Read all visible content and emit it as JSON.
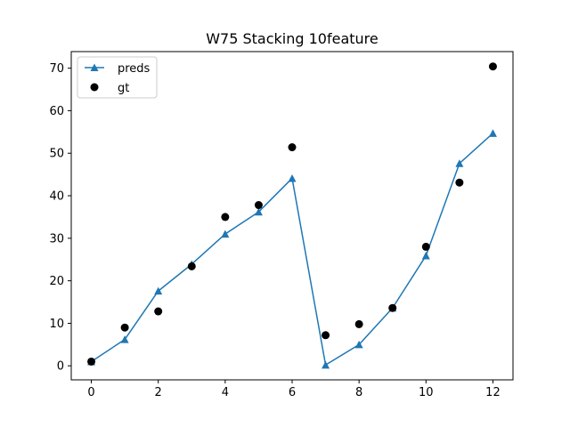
{
  "chart_data": {
    "type": "line",
    "title": "W75 Stacking 10feature",
    "xlabel": "",
    "ylabel": "",
    "xlim": [
      -0.6,
      12.6
    ],
    "ylim": [
      -3.3,
      73.9
    ],
    "xticks": [
      0,
      2,
      4,
      6,
      8,
      10,
      12
    ],
    "yticks": [
      0,
      10,
      20,
      30,
      40,
      50,
      60,
      70
    ],
    "legend_position": "top-left",
    "series": [
      {
        "name": "preds",
        "style": "line-triangle",
        "color": "#1f77b4",
        "x": [
          0,
          1,
          2,
          3,
          4,
          5,
          6,
          7,
          8,
          9,
          10,
          11,
          12
        ],
        "values": [
          1.0,
          6.2,
          17.6,
          23.9,
          31.0,
          36.2,
          44.1,
          0.2,
          5.0,
          13.6,
          25.9,
          47.6,
          54.7
        ]
      },
      {
        "name": "gt",
        "style": "scatter-circle",
        "color": "#000000",
        "x": [
          0,
          1,
          2,
          3,
          4,
          5,
          6,
          7,
          8,
          9,
          10,
          11,
          12
        ],
        "values": [
          1.0,
          9.0,
          12.8,
          23.4,
          35.0,
          37.8,
          51.4,
          7.2,
          9.8,
          13.6,
          28.0,
          43.1,
          70.4
        ]
      }
    ]
  }
}
